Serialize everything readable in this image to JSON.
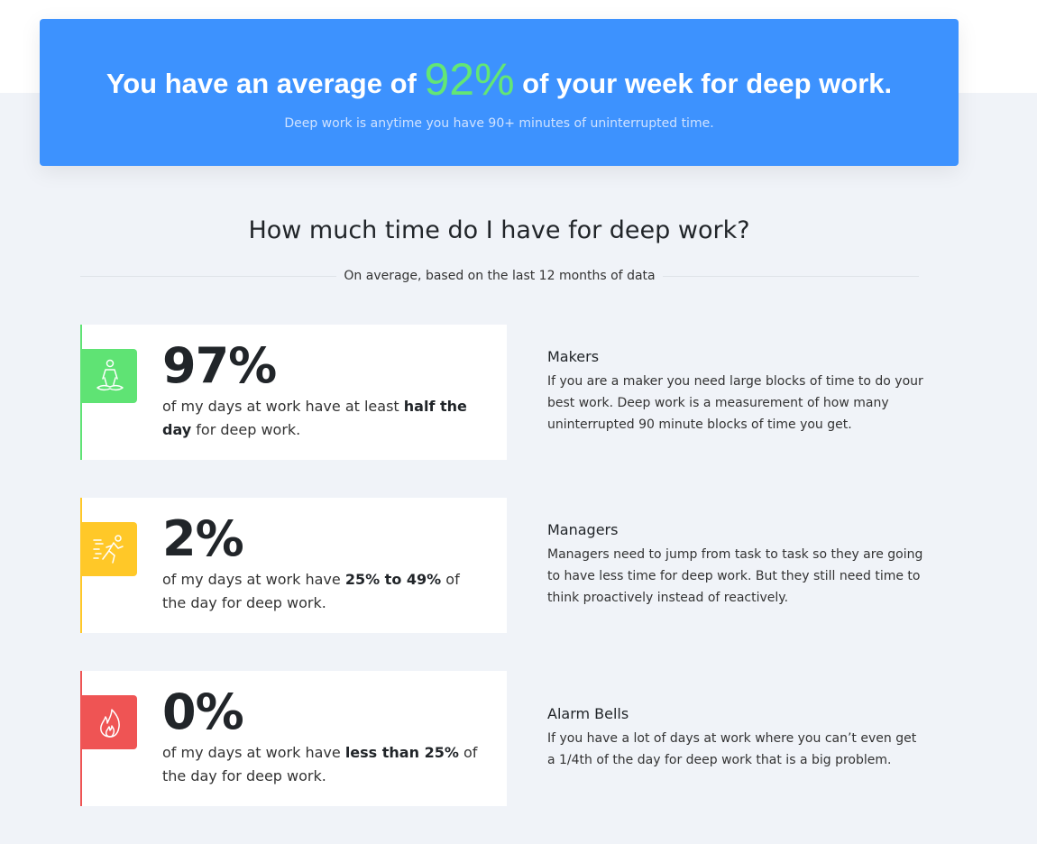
{
  "banner": {
    "pre": "You have an average of",
    "percent": "92%",
    "post": "of your week for deep work.",
    "subtitle": "Deep work is anytime you have 90+ minutes of uninterrupted time."
  },
  "section": {
    "title": "How much time do I have for deep work?",
    "subtitle": "On average, based on the last 12 months of data"
  },
  "colors": {
    "banner": "#3d92fe",
    "green": "#5fe374",
    "yellow": "#ffc828",
    "red": "#ef5454"
  },
  "stats": [
    {
      "icon": "meditation-icon",
      "percent": "97%",
      "pre": "of my days at work have at least ",
      "bold": "half the day",
      "post": " for deep work.",
      "side_title": "Makers",
      "side_text": "If you are a maker you need large blocks of time to do your best work. Deep work is a measurement of how many uninterrupted 90 minute blocks of time you get."
    },
    {
      "icon": "running-person-icon",
      "percent": "2%",
      "pre": "of my days at work have ",
      "bold": "25% to 49%",
      "post": " of the day for deep work.",
      "side_title": "Managers",
      "side_text": "Managers need to jump from task to task so they are going to have less time for deep work. But they still need time to think proactively instead of reactively."
    },
    {
      "icon": "fire-icon",
      "percent": "0%",
      "pre": "of my days at work have ",
      "bold": "less than 25%",
      "post": " of the day for deep work.",
      "side_title": "Alarm Bells",
      "side_text": "If you have a lot of days at work where you can’t even get a 1/4th of the day for deep work that is a big problem."
    }
  ]
}
